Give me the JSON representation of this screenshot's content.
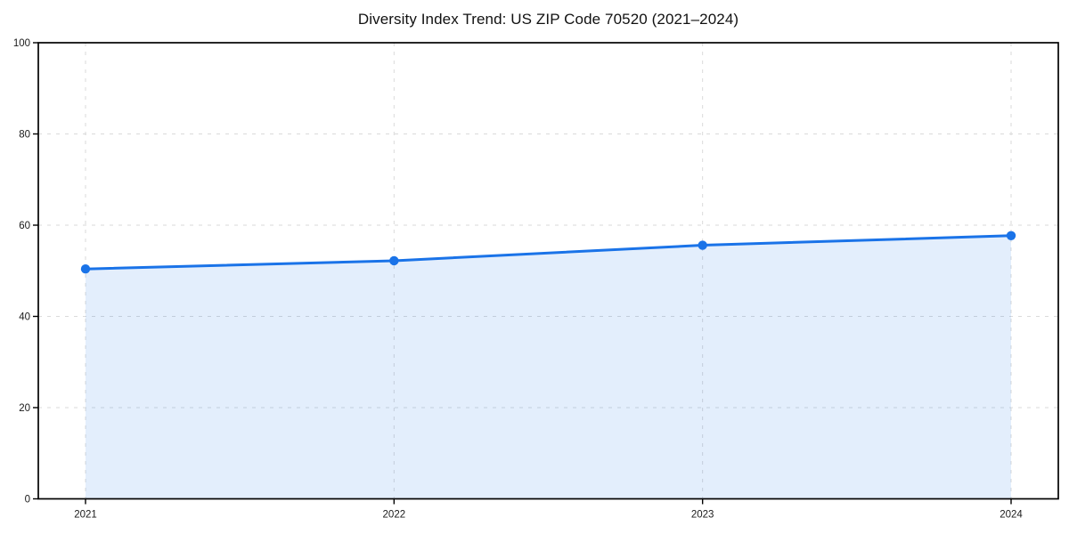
{
  "chart_data": {
    "type": "line",
    "title": "Diversity Index Trend: US ZIP Code 70520 (2021–2024)",
    "x": [
      "2021",
      "2022",
      "2023",
      "2024"
    ],
    "series": [
      {
        "name": "Diversity Index",
        "values": [
          50.4,
          52.2,
          55.6,
          57.7
        ]
      }
    ],
    "area_fill": true,
    "markers": true,
    "xlabel": "",
    "ylabel": "",
    "ylim": [
      0,
      100
    ],
    "yticks": [
      0,
      20,
      40,
      60,
      80,
      100
    ],
    "grid": "dashed, horizontal and vertical at ticks",
    "legend_position": "none",
    "colors": {
      "line": "#1a73e8",
      "marker": "#1a73e8",
      "area_fill": "rgba(26,115,232,0.12)",
      "grid": "#dadada",
      "axis_frame": "#000000",
      "tick_label": "#1a1a1a",
      "background": "#ffffff"
    }
  }
}
